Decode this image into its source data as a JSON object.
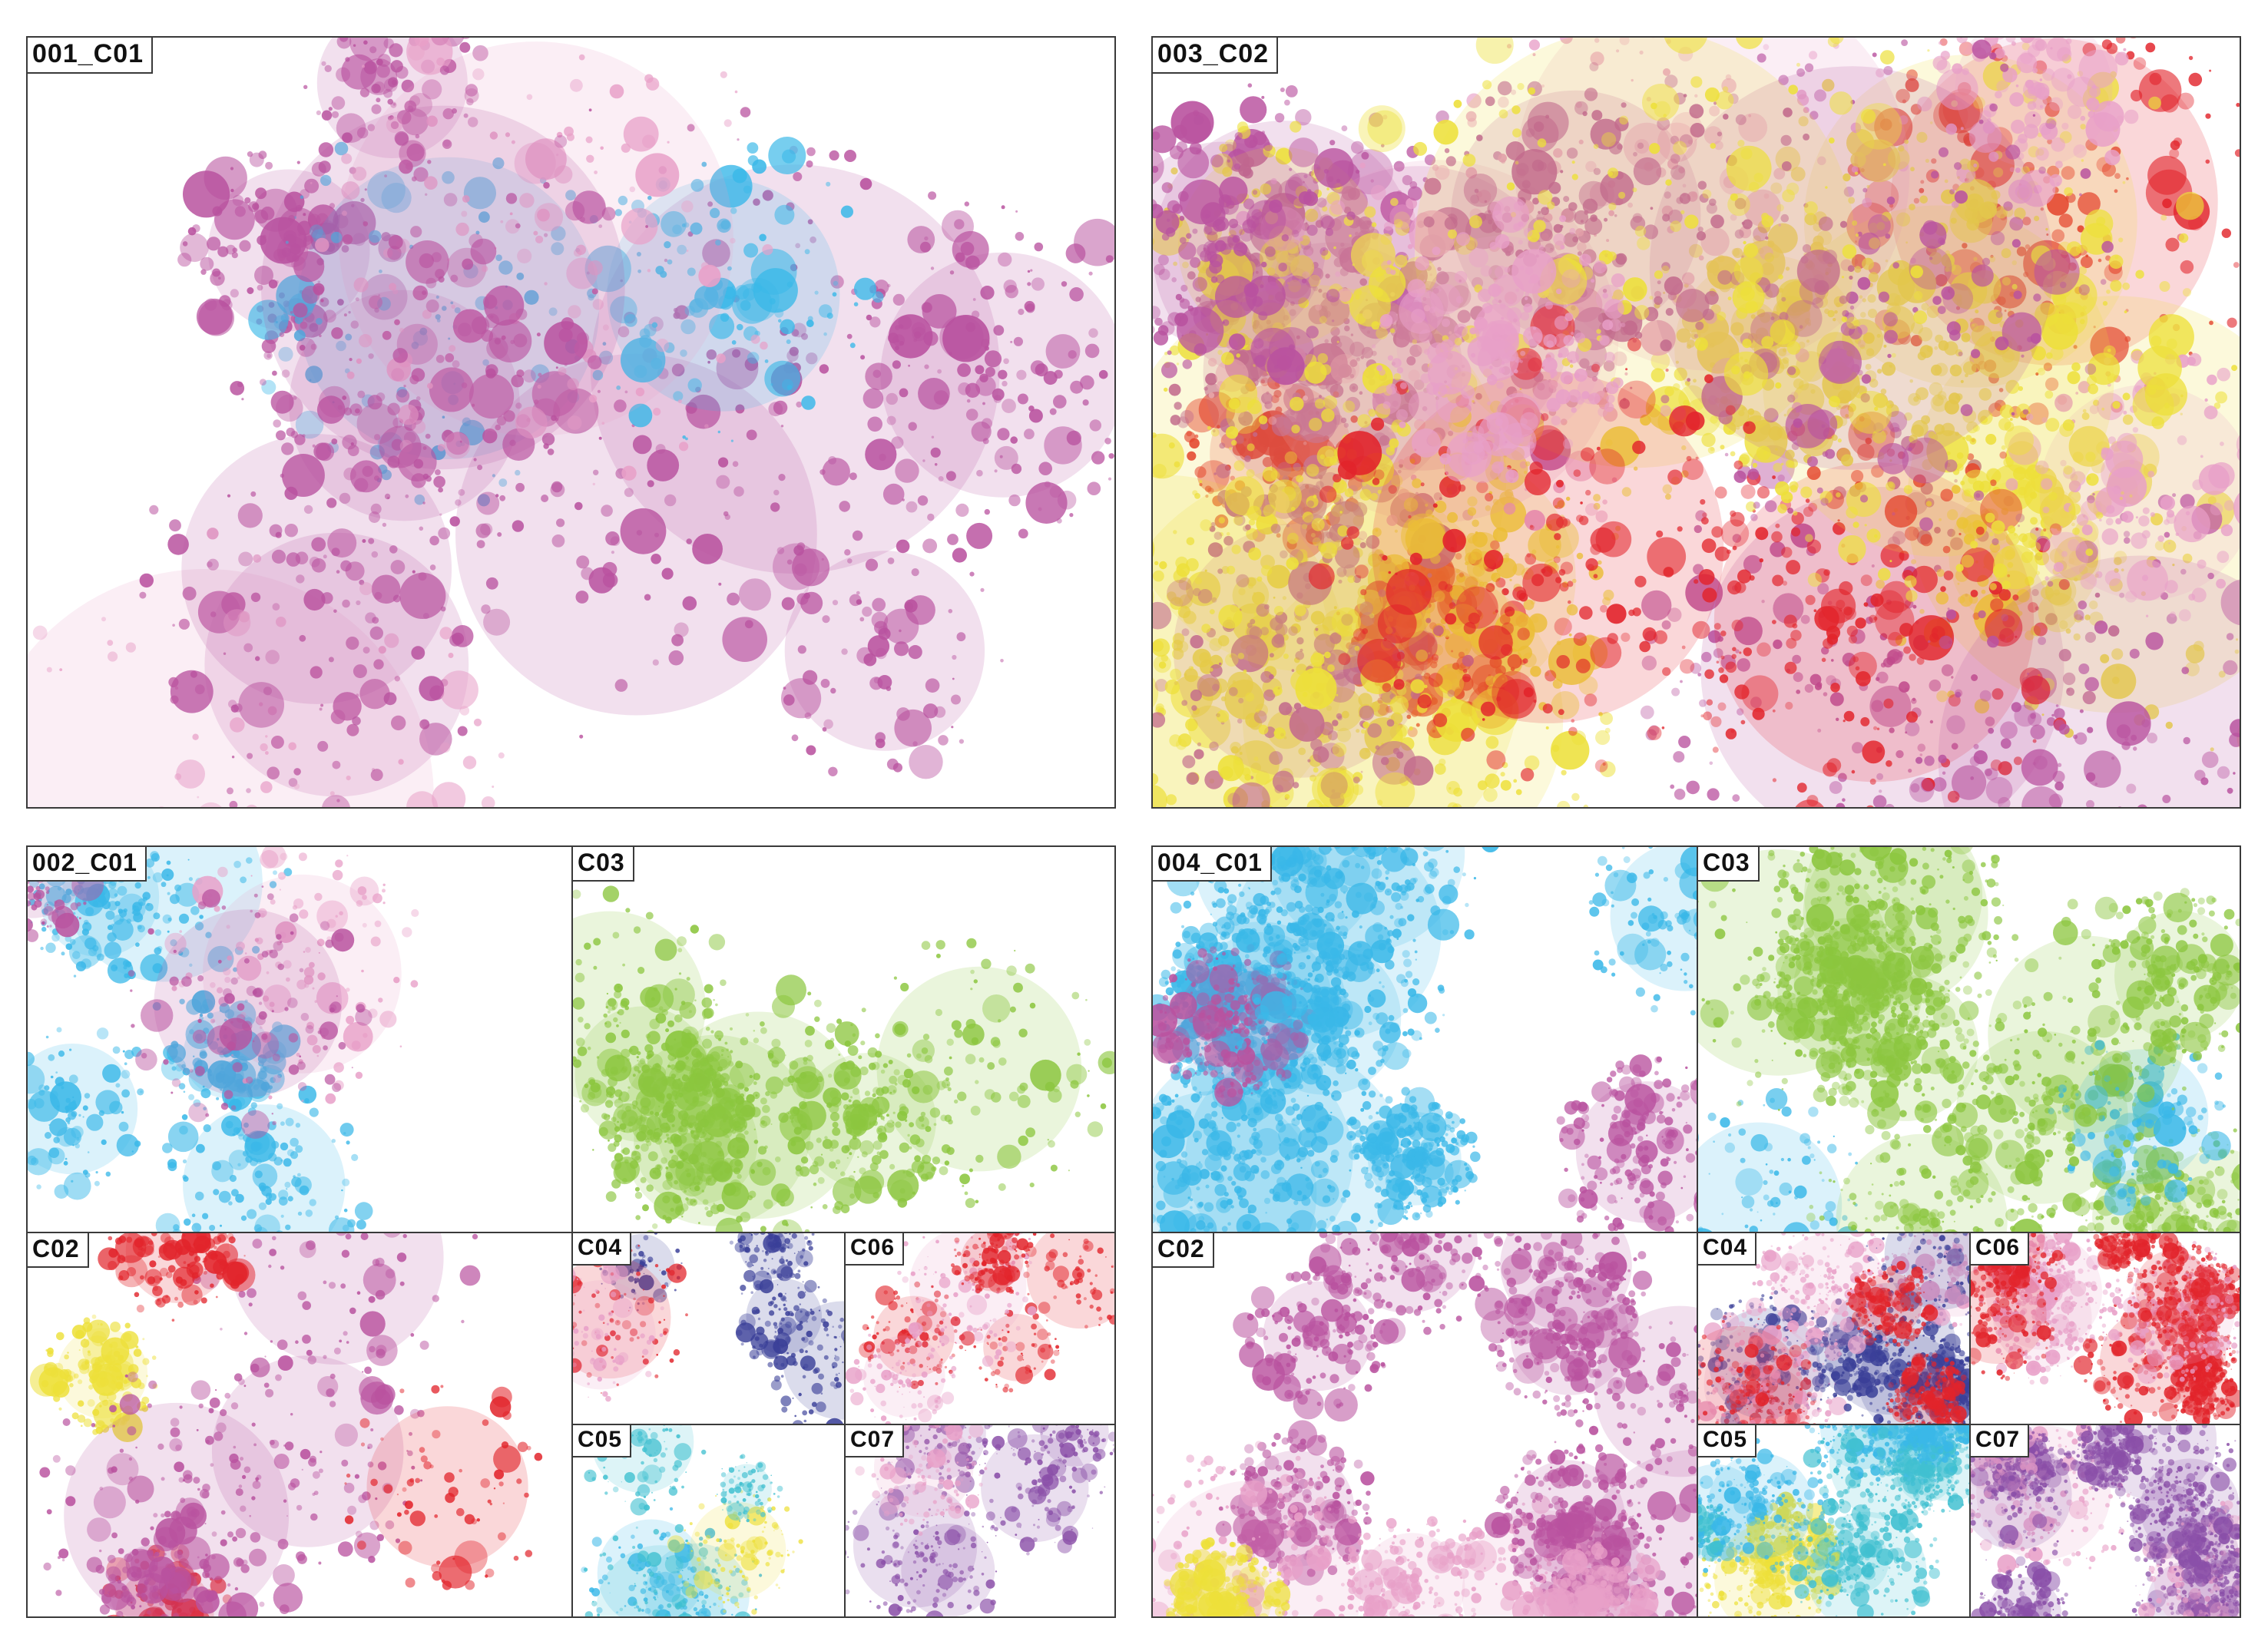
{
  "labels": {
    "p001_c01": "001_C01",
    "p003_c02": "003_C02",
    "p002_c01": "002_C01",
    "p002_c03": "C03",
    "p002_c02": "C02",
    "p002_c04": "C04",
    "p002_c06": "C06",
    "p002_c05": "C05",
    "p002_c07": "C07",
    "p004_c01": "004_C01",
    "p004_c03": "C03",
    "p004_c02": "C02",
    "p004_c04": "C04",
    "p004_c06": "C06",
    "p004_c05": "C05",
    "p004_c07": "C07"
  },
  "colors": {
    "cyan": "#3ab8e8",
    "magenta": "#b9529f",
    "yellow": "#ede03a",
    "red": "#e2242b",
    "green": "#8cc63f",
    "navy": "#3a3f98",
    "purple": "#8a4fa8",
    "pink": "#e8a0c8",
    "teal": "#40c0d0",
    "border": "#3a3a3a"
  }
}
